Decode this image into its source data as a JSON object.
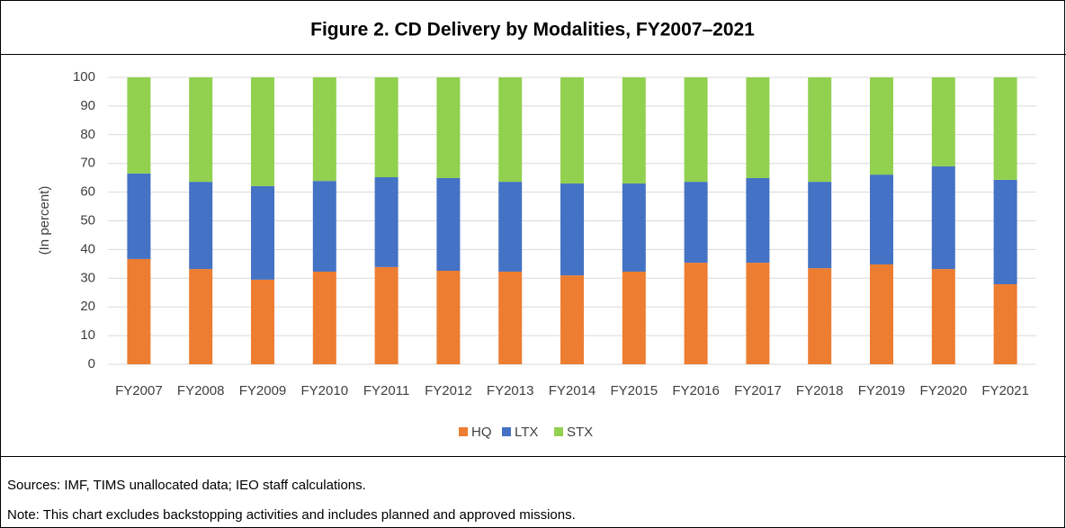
{
  "chart_data": {
    "type": "stacked_bar",
    "title": "Figure 2. CD Delivery by Modalities, FY2007–2021",
    "y_label": "(In percent)",
    "categories": [
      "FY2007",
      "FY2008",
      "FY2009",
      "FY2010",
      "FY2011",
      "FY2012",
      "FY2013",
      "FY2014",
      "FY2015",
      "FY2016",
      "FY2017",
      "FY2018",
      "FY2019",
      "FY2020",
      "FY2021"
    ],
    "series": [
      {
        "name": "HQ",
        "color": "#ED7D31",
        "values": [
          36.7,
          33.2,
          29.5,
          32.3,
          33.9,
          32.6,
          32.3,
          31.0,
          32.3,
          35.4,
          35.4,
          33.5,
          34.8,
          33.2,
          27.9
        ]
      },
      {
        "name": "LTX",
        "color": "#4472C4",
        "values": [
          29.8,
          30.4,
          32.6,
          31.6,
          31.3,
          32.3,
          31.3,
          32.0,
          30.7,
          28.2,
          29.5,
          30.1,
          31.3,
          35.8,
          36.4
        ]
      },
      {
        "name": "STX",
        "color": "#92D050",
        "values": [
          33.5,
          36.4,
          37.9,
          36.1,
          34.8,
          35.1,
          36.4,
          37.0,
          37.0,
          36.4,
          35.1,
          36.4,
          33.9,
          31.0,
          35.7
        ]
      }
    ],
    "ylim": [
      0,
      100
    ],
    "yticks": [
      0,
      10,
      20,
      30,
      40,
      50,
      60,
      70,
      80,
      90,
      100
    ],
    "grid": true,
    "legend": "bottom",
    "sources": "Sources: IMF, TIMS unallocated data; IEO staff calculations.",
    "note": "Note: This chart excludes backstopping activities  and includes planned and approved missions."
  }
}
